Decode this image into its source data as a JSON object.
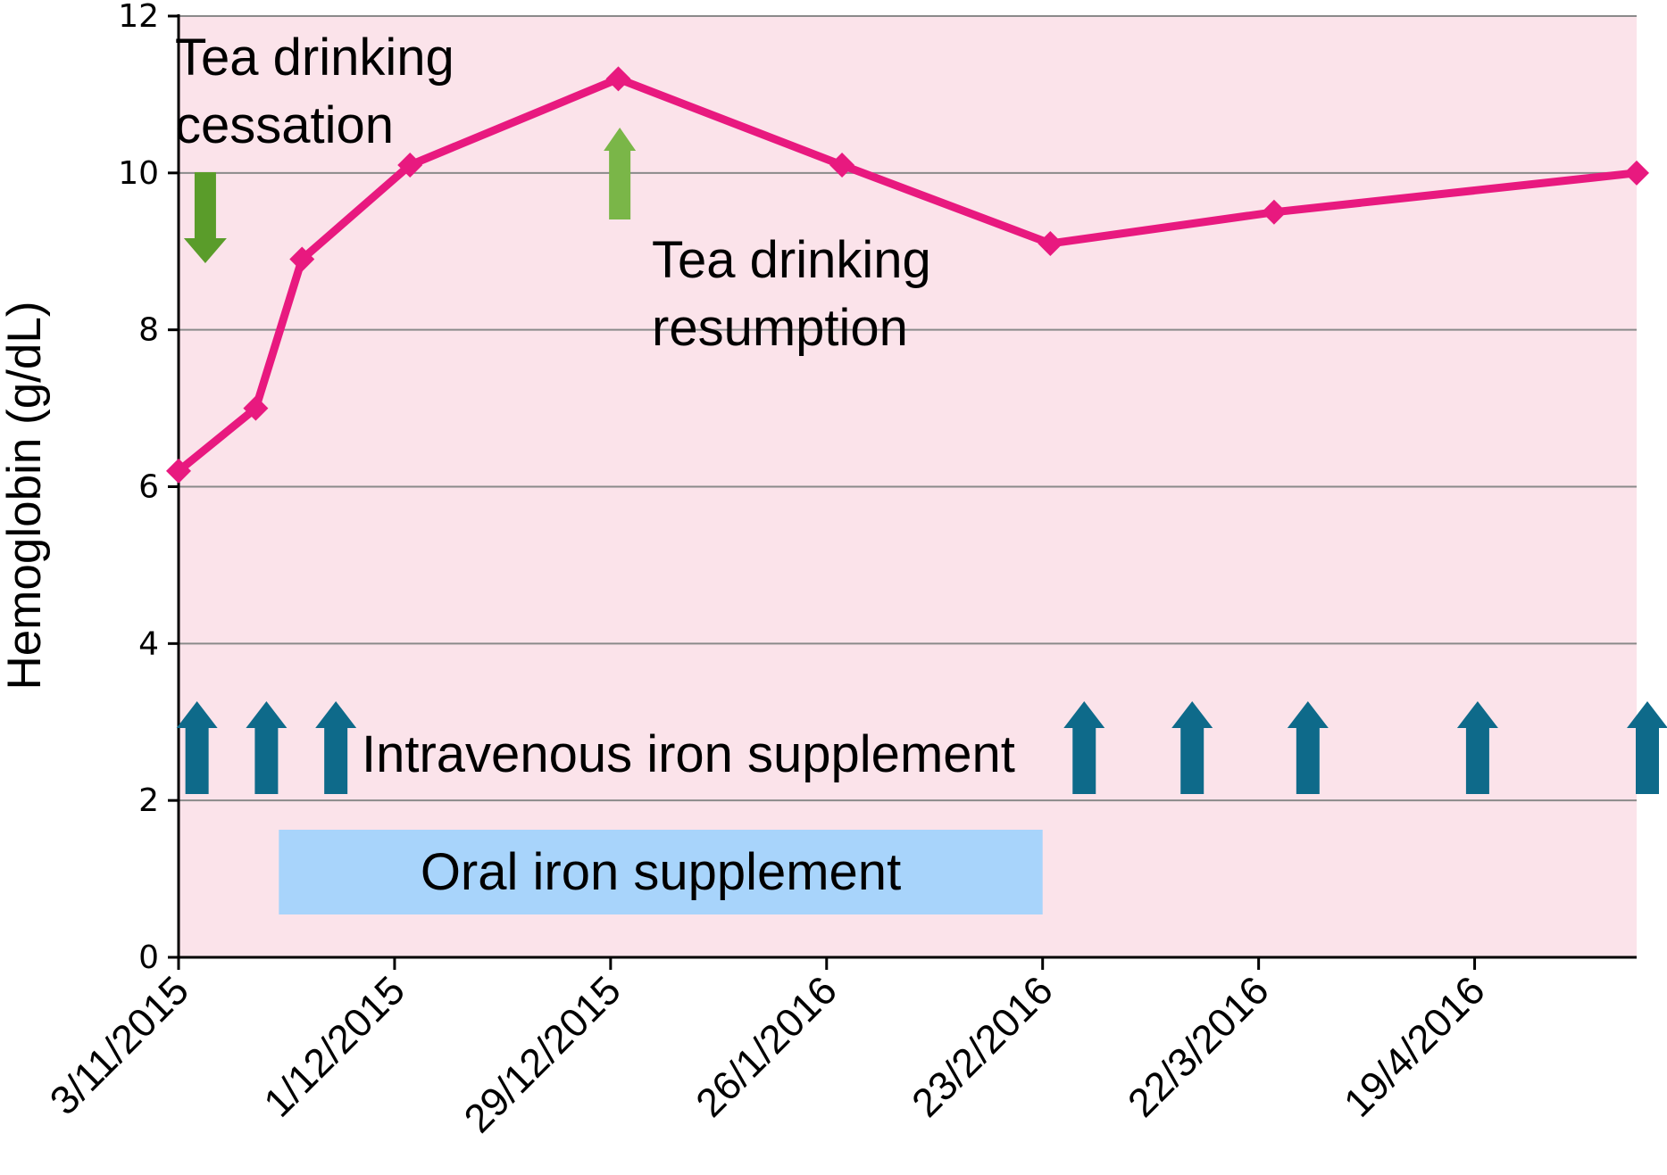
{
  "chart_data": {
    "type": "line",
    "title": "",
    "xlabel": "",
    "ylabel": "Hemoglobin (g/dL)",
    "ylim": [
      0,
      12
    ],
    "yticks": [
      0,
      2,
      4,
      6,
      8,
      10,
      12
    ],
    "xlim": [
      "2015-11-03",
      "2016-05-10"
    ],
    "xticks": [
      {
        "date": "2015-11-03",
        "label": "3/11/2015"
      },
      {
        "date": "2015-12-01",
        "label": "1/12/2015"
      },
      {
        "date": "2015-12-29",
        "label": "29/12/2015"
      },
      {
        "date": "2016-01-26",
        "label": "26/1/2016"
      },
      {
        "date": "2016-02-23",
        "label": "23/2/2016"
      },
      {
        "date": "2016-03-22",
        "label": "22/3/2016"
      },
      {
        "date": "2016-04-19",
        "label": "19/4/2016"
      }
    ],
    "grid": true,
    "background": "#fbe3ea",
    "series": [
      {
        "color": "#e8197f",
        "marker": "diamond",
        "points": [
          {
            "x": "2015-11-03",
            "y": 6.2
          },
          {
            "x": "2015-11-13",
            "y": 7.0
          },
          {
            "x": "2015-11-19",
            "y": 8.9
          },
          {
            "x": "2015-12-03",
            "y": 10.1
          },
          {
            "x": "2015-12-30",
            "y": 11.2
          },
          {
            "x": "2016-01-28",
            "y": 10.1
          },
          {
            "x": "2016-02-24",
            "y": 9.1
          },
          {
            "x": "2016-03-24",
            "y": 9.5
          },
          {
            "x": "2016-05-10",
            "y": 10.0
          }
        ]
      }
    ],
    "annotations": {
      "tea_cessation": {
        "lines": [
          "Tea drinking",
          "cessation"
        ],
        "arrow_direction": "down",
        "arrow_date": "2015-11-06",
        "arrow_color": "#5a9c2a"
      },
      "tea_resumption": {
        "lines": [
          "Tea drinking",
          "resumption"
        ],
        "arrow_direction": "up",
        "arrow_date": "2015-12-31",
        "arrow_color": "#7ab648"
      },
      "intravenous": {
        "label": "Intravenous iron supplement",
        "arrow_color": "#0e6a8a",
        "dates": [
          "2015-11-04",
          "2015-11-13",
          "2015-11-22",
          "2016-02-27",
          "2016-03-12",
          "2016-03-27",
          "2016-04-18",
          "2016-05-10"
        ]
      },
      "oral": {
        "label": "Oral iron supplement",
        "start": "2015-11-16",
        "end": "2016-02-23",
        "color": "#a8d4fb"
      }
    }
  }
}
